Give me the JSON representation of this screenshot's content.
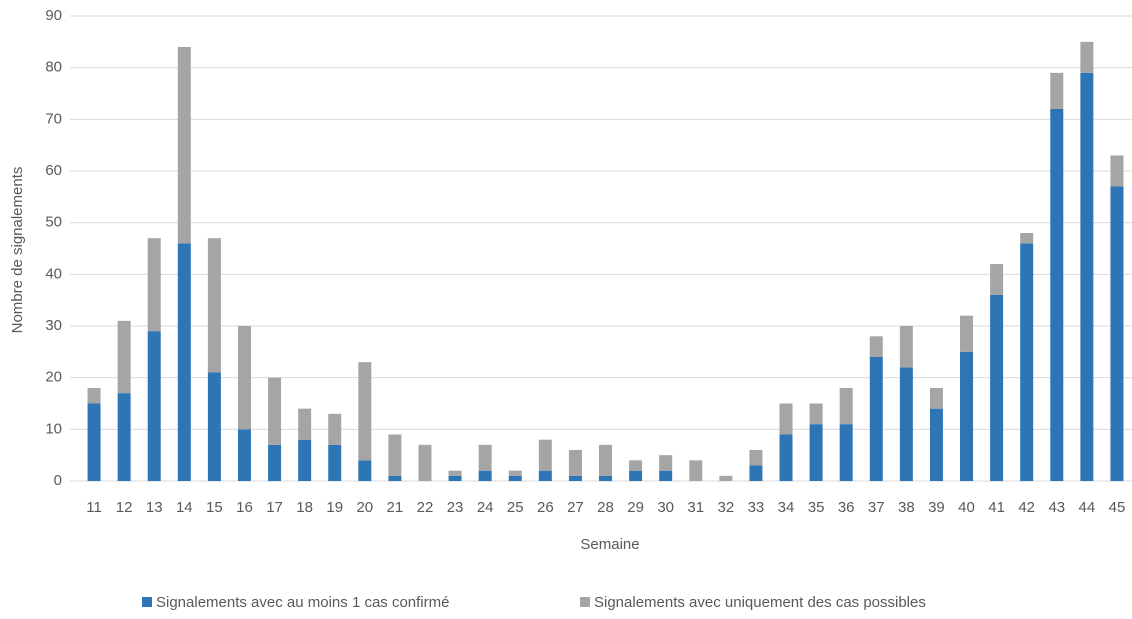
{
  "chart_data": {
    "type": "stacked_bar",
    "x_label": "Semaine",
    "y_label": "Nombre de signalements",
    "categories": [
      "11",
      "12",
      "13",
      "14",
      "15",
      "16",
      "17",
      "18",
      "19",
      "20",
      "21",
      "22",
      "23",
      "24",
      "25",
      "26",
      "27",
      "28",
      "29",
      "30",
      "31",
      "32",
      "33",
      "34",
      "35",
      "36",
      "37",
      "38",
      "39",
      "40",
      "41",
      "42",
      "43",
      "44",
      "45"
    ],
    "series": [
      {
        "name": "Signalements avec au moins 1 cas confirmé",
        "color": "#2e75b6",
        "values": [
          15,
          17,
          29,
          46,
          21,
          10,
          7,
          8,
          7,
          4,
          1,
          0,
          1,
          2,
          1,
          2,
          1,
          1,
          2,
          2,
          0,
          0,
          3,
          9,
          11,
          11,
          24,
          22,
          14,
          25,
          36,
          46,
          72,
          79,
          57
        ]
      },
      {
        "name": "Signalements avec uniquement des cas possibles",
        "color": "#a5a5a5",
        "values": [
          3,
          14,
          18,
          38,
          26,
          20,
          13,
          6,
          6,
          19,
          8,
          7,
          1,
          5,
          1,
          6,
          5,
          6,
          2,
          3,
          4,
          1,
          3,
          6,
          4,
          7,
          4,
          8,
          4,
          7,
          6,
          2,
          7,
          6,
          6
        ]
      }
    ],
    "ylim": [
      0,
      90
    ],
    "yticks": [
      0,
      10,
      20,
      30,
      40,
      50,
      60,
      70,
      80,
      90
    ],
    "grid": true,
    "legend": "bottom"
  }
}
